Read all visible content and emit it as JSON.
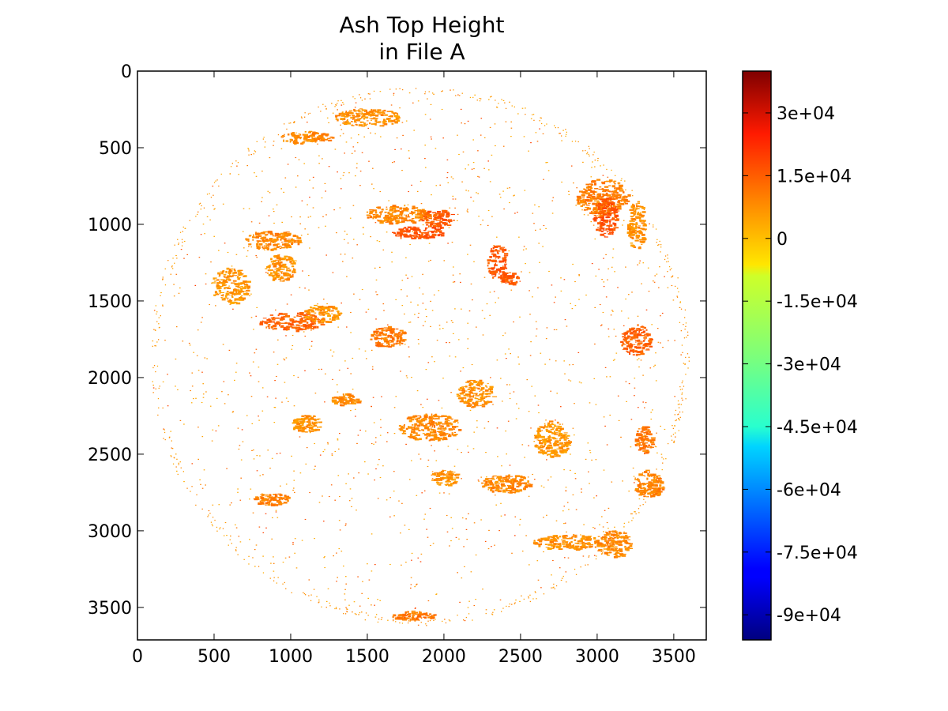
{
  "chart_data": {
    "type": "heatmap",
    "title": "Ash Top Height",
    "subtitle": "in File A",
    "xlabel": "",
    "ylabel": "",
    "xlim": [
      0,
      3712
    ],
    "ylim": [
      3712,
      0
    ],
    "x_ticks": [
      0,
      500,
      1000,
      1500,
      2000,
      2500,
      3000,
      3500
    ],
    "x_tick_labels": [
      "0",
      "500",
      "1000",
      "1500",
      "2000",
      "2500",
      "3000",
      "3500"
    ],
    "y_ticks": [
      0,
      500,
      1000,
      1500,
      2000,
      2500,
      3000,
      3500
    ],
    "y_tick_labels": [
      "0",
      "500",
      "1000",
      "1500",
      "2000",
      "2500",
      "3000",
      "3500"
    ],
    "grid": false,
    "colormap": "jet",
    "colorbar": {
      "vmin": -96000,
      "vmax": 40000,
      "ticks": [
        30000,
        15000,
        0,
        -15000,
        -30000,
        -45000,
        -60000,
        -75000,
        -90000
      ],
      "tick_labels": [
        "3e+04",
        "1.5e+04",
        "0",
        "-1.5e+04",
        "-3e+04",
        "-4.5e+04",
        "-6e+04",
        "-7.5e+04",
        "-9e+04"
      ]
    },
    "disk": {
      "center": [
        1840,
        1856
      ],
      "radius": 1760
    },
    "dominant_value_range": [
      0,
      15000
    ],
    "patches": [
      {
        "x": 1690,
        "y": 930,
        "rx": 210,
        "ry": 60,
        "value": 5000
      },
      {
        "x": 1950,
        "y": 960,
        "rx": 110,
        "ry": 60,
        "value": 11000
      },
      {
        "x": 1820,
        "y": 1050,
        "rx": 170,
        "ry": 40,
        "value": 12000
      },
      {
        "x": 3030,
        "y": 820,
        "rx": 170,
        "ry": 120,
        "value": 6000
      },
      {
        "x": 3050,
        "y": 950,
        "rx": 80,
        "ry": 130,
        "value": 12000
      },
      {
        "x": 3250,
        "y": 1000,
        "rx": 60,
        "ry": 160,
        "value": 4000
      },
      {
        "x": 880,
        "y": 1100,
        "rx": 180,
        "ry": 60,
        "value": 5000
      },
      {
        "x": 930,
        "y": 1280,
        "rx": 100,
        "ry": 90,
        "value": 4000
      },
      {
        "x": 1000,
        "y": 1630,
        "rx": 210,
        "ry": 60,
        "value": 10000
      },
      {
        "x": 1200,
        "y": 1580,
        "rx": 120,
        "ry": 60,
        "value": 3000
      },
      {
        "x": 1630,
        "y": 1730,
        "rx": 120,
        "ry": 70,
        "value": 7000
      },
      {
        "x": 2340,
        "y": 1240,
        "rx": 60,
        "ry": 110,
        "value": 12000
      },
      {
        "x": 2420,
        "y": 1350,
        "rx": 60,
        "ry": 40,
        "value": 11000
      },
      {
        "x": 3250,
        "y": 1750,
        "rx": 100,
        "ry": 100,
        "value": 10000
      },
      {
        "x": 2200,
        "y": 2100,
        "rx": 120,
        "ry": 90,
        "value": 4000
      },
      {
        "x": 1900,
        "y": 2320,
        "rx": 200,
        "ry": 90,
        "value": 5000
      },
      {
        "x": 1350,
        "y": 2140,
        "rx": 90,
        "ry": 40,
        "value": 5000
      },
      {
        "x": 1100,
        "y": 2300,
        "rx": 100,
        "ry": 60,
        "value": 3000
      },
      {
        "x": 2400,
        "y": 2690,
        "rx": 160,
        "ry": 60,
        "value": 5000
      },
      {
        "x": 3330,
        "y": 2690,
        "rx": 100,
        "ry": 90,
        "value": 6000
      },
      {
        "x": 2800,
        "y": 3070,
        "rx": 220,
        "ry": 50,
        "value": 4000
      },
      {
        "x": 3100,
        "y": 3080,
        "rx": 120,
        "ry": 90,
        "value": 5000
      },
      {
        "x": 870,
        "y": 2790,
        "rx": 120,
        "ry": 40,
        "value": 6000
      },
      {
        "x": 1800,
        "y": 3550,
        "rx": 140,
        "ry": 30,
        "value": 7000
      },
      {
        "x": 1500,
        "y": 300,
        "rx": 220,
        "ry": 60,
        "value": 4000
      },
      {
        "x": 1100,
        "y": 430,
        "rx": 170,
        "ry": 40,
        "value": 5000
      },
      {
        "x": 3300,
        "y": 2400,
        "rx": 60,
        "ry": 90,
        "value": 7000
      },
      {
        "x": 2000,
        "y": 2650,
        "rx": 90,
        "ry": 50,
        "value": 4000
      },
      {
        "x": 600,
        "y": 1400,
        "rx": 120,
        "ry": 120,
        "value": 3000
      },
      {
        "x": 2700,
        "y": 2400,
        "rx": 120,
        "ry": 120,
        "value": 3000
      }
    ]
  }
}
